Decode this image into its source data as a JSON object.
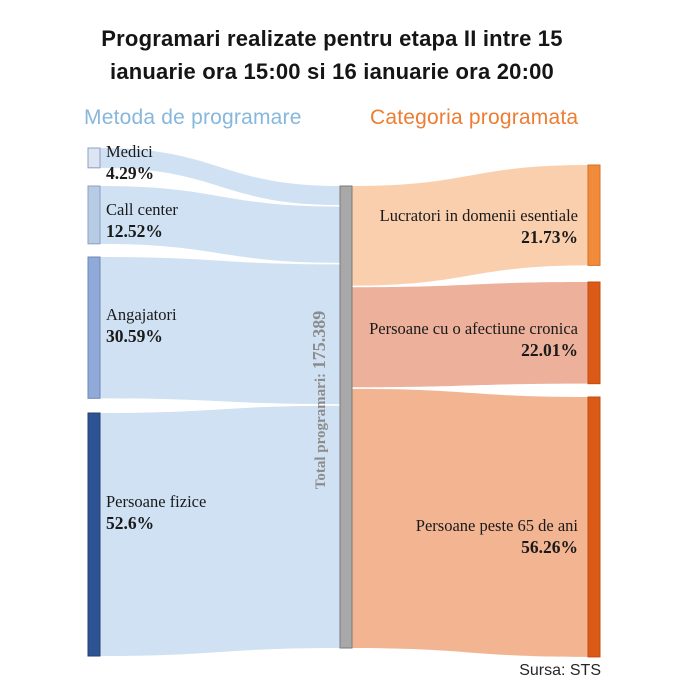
{
  "title": {
    "line1": "Programari realizate pentru etapa II intre 15",
    "line2": "ianuarie ora 15:00 si 16 ianuarie ora 20:00"
  },
  "source": "Sursa: STS",
  "chart_data": {
    "type": "sankey",
    "left_title": "Metoda de programare",
    "left_title_color": "#86B7DC",
    "right_title": "Categoria programata",
    "right_title_color": "#ED7D31",
    "center_node": {
      "label": "Total programari:",
      "value": "175.389",
      "bar_color": "#A8A8A8",
      "bar_border": "#7A7A7A",
      "text_color": "#8C8C8C"
    },
    "flow_color_left": "#CFE1F2",
    "label_text_color": "#1A1A1A",
    "left_nodes": [
      {
        "id": "medici",
        "label": "Medici",
        "percent": "4.29%",
        "value": 4.29,
        "node_color": "#DCE5F1",
        "node_border": "#8EA0C0"
      },
      {
        "id": "call-center",
        "label": "Call center",
        "percent": "12.52%",
        "value": 12.52,
        "node_color": "#B7CBE5",
        "node_border": "#8EA0C0"
      },
      {
        "id": "angajatori",
        "label": "Angajatori",
        "percent": "30.59%",
        "value": 30.59,
        "node_color": "#8FA9D8",
        "node_border": "#7288B8"
      },
      {
        "id": "persoane-fizice",
        "label": "Persoane fizice",
        "percent": "52.6%",
        "value": 52.6,
        "node_color": "#2E5395",
        "node_border": "#24416F"
      }
    ],
    "right_nodes": [
      {
        "id": "lucratori-domenii-esentiale",
        "label": "Lucratori in domenii esentiale",
        "percent": "21.73%",
        "value": 21.73,
        "node_color": "#F08B3C",
        "node_border": "#D96F20",
        "flow_color": "#FACFAE"
      },
      {
        "id": "persoane-afectiune-cronica",
        "label": "Persoane cu o afectiune cronica",
        "percent": "22.01%",
        "value": 22.01,
        "node_color": "#DC5A17",
        "node_border": "#C14E0F",
        "flow_color": "#EDB09A"
      },
      {
        "id": "persoane-peste-65",
        "label": "Persoane peste 65 de ani",
        "percent": "56.26%",
        "value": 56.26,
        "node_color": "#DC5A17",
        "node_border": "#C14E0F",
        "flow_color": "#F3B492"
      }
    ]
  }
}
